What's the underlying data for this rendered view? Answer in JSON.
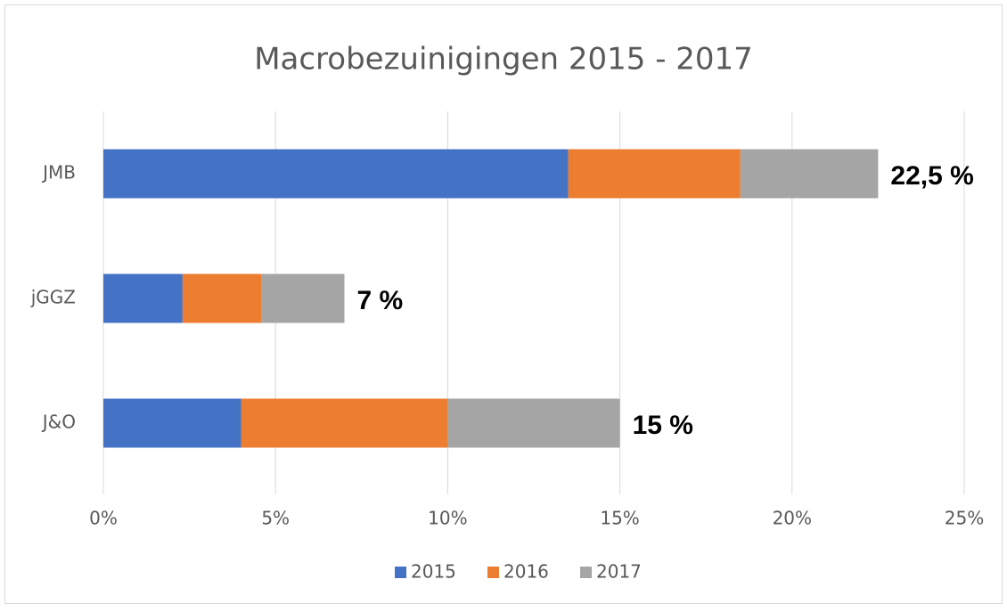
{
  "chart_data": {
    "type": "stacked-barh",
    "title": "Macrobezuinigingen 2015 - 2017",
    "categories": [
      "JMB",
      "jGGZ",
      "J&O"
    ],
    "series": [
      {
        "name": "2015",
        "color": "#4472c4",
        "values": [
          13.5,
          2.3,
          4
        ]
      },
      {
        "name": "2016",
        "color": "#ed7d31",
        "values": [
          5,
          2.3,
          6
        ]
      },
      {
        "name": "2017",
        "color": "#a5a5a5",
        "values": [
          4,
          2.4,
          5
        ]
      }
    ],
    "totals": [
      22.5,
      7,
      15
    ],
    "total_labels": [
      "22,5 %",
      "7 %",
      "15 %"
    ],
    "xlim": [
      0,
      25
    ],
    "xticks": [
      {
        "value": 0,
        "label": "0%"
      },
      {
        "value": 5,
        "label": "5%"
      },
      {
        "value": 10,
        "label": "10%"
      },
      {
        "value": 15,
        "label": "15%"
      },
      {
        "value": 20,
        "label": "20%"
      },
      {
        "value": 25,
        "label": "25%"
      }
    ],
    "grid": true,
    "legend": "bottom"
  }
}
